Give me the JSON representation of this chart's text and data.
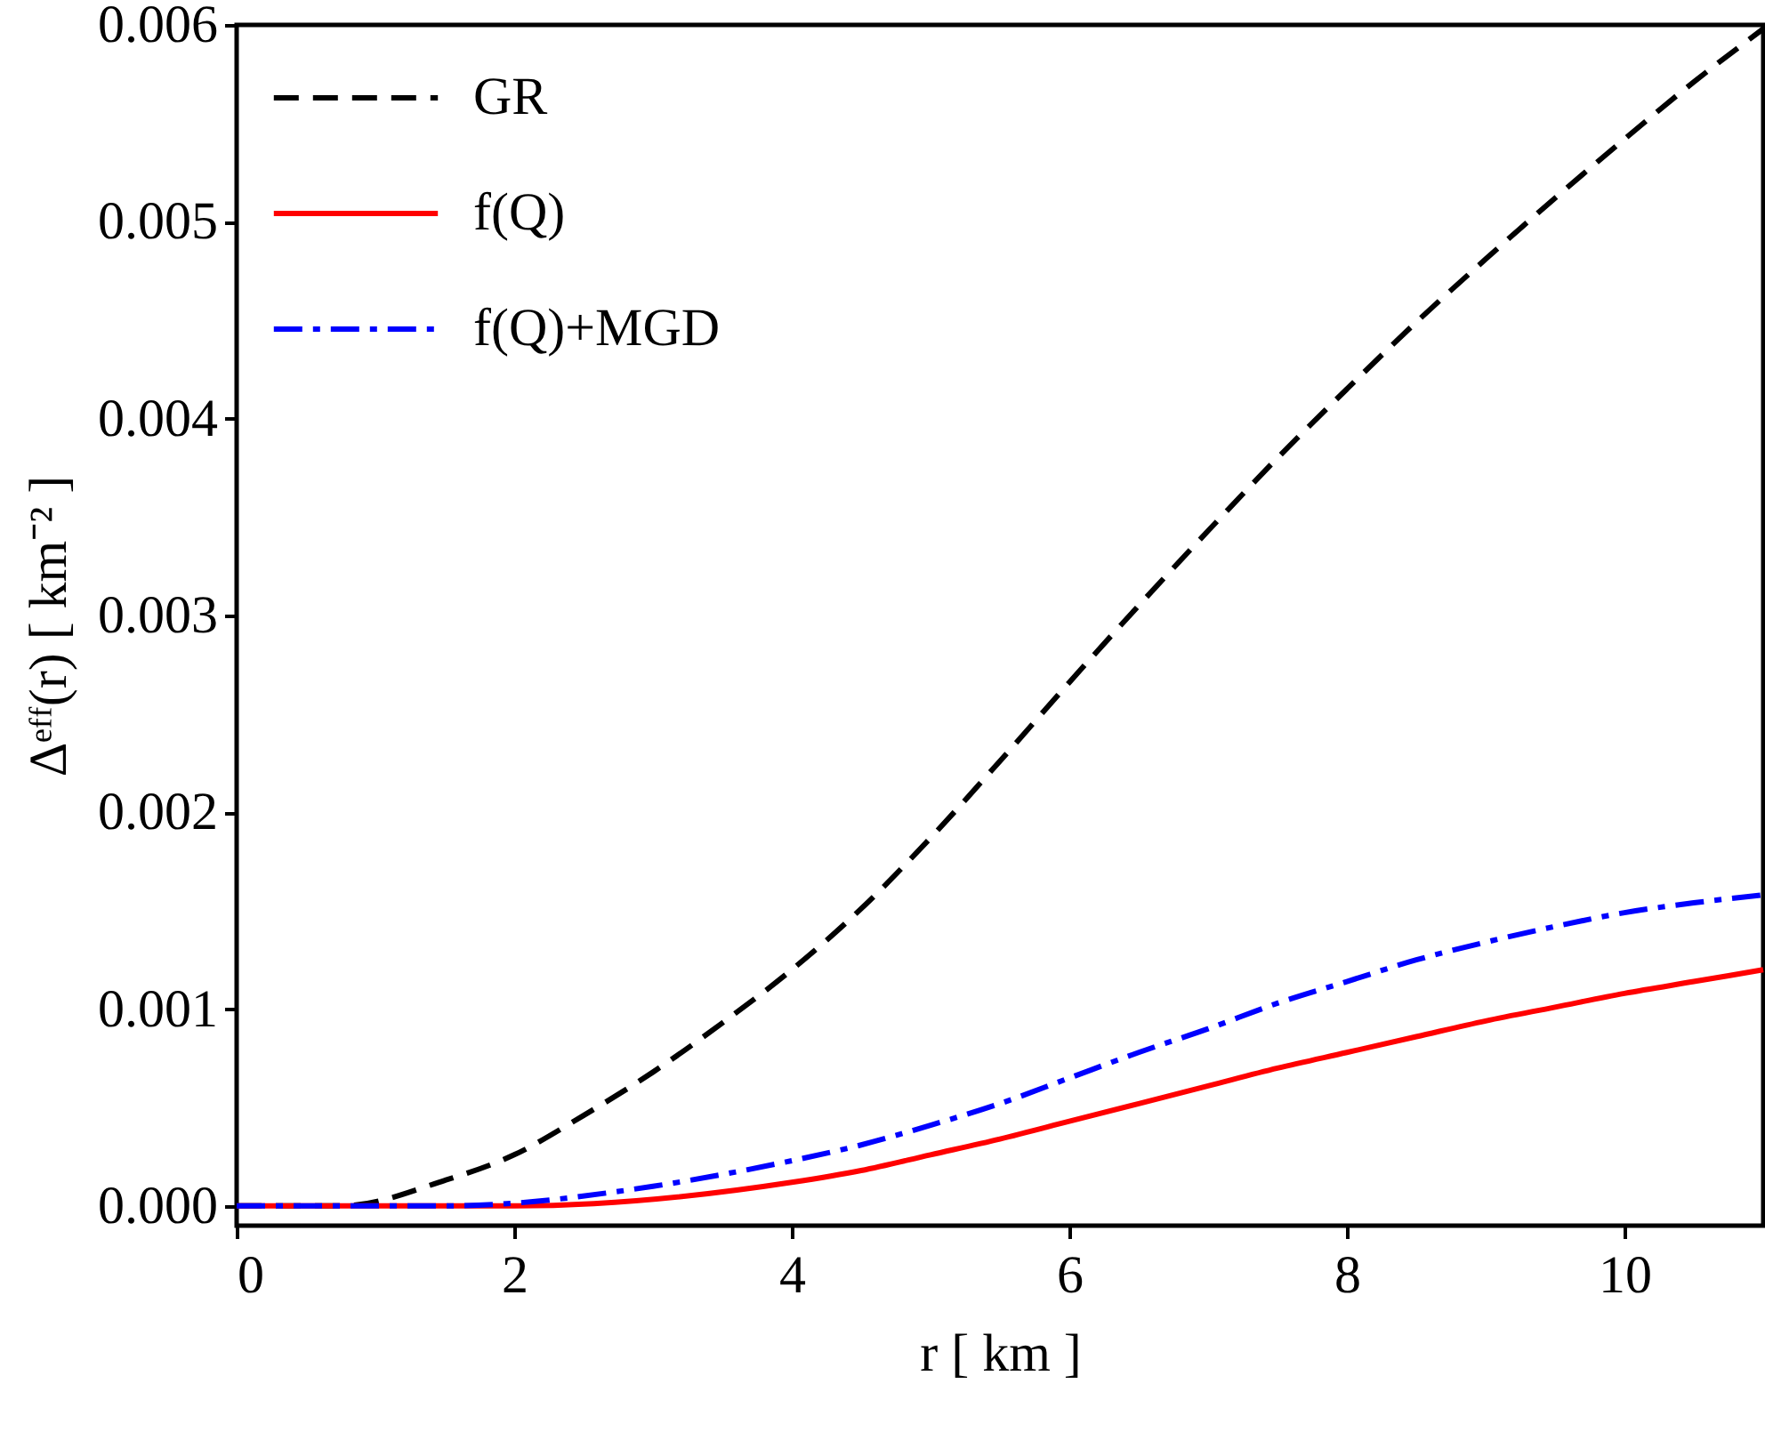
{
  "chart_data": {
    "type": "line",
    "xlabel": "r [ km ]",
    "ylabel": "Δᵉᶠᶠ(r) [ km⁻² ]",
    "xlim": [
      0,
      11
    ],
    "ylim": [
      -0.0001,
      0.006
    ],
    "xticks": [
      0,
      2,
      4,
      6,
      8,
      10
    ],
    "yticks": [
      {
        "value": 0,
        "label": "0.000"
      },
      0.001,
      0.002,
      0.003,
      0.004,
      0.005,
      0.006
    ],
    "grid": false,
    "legend": "top left",
    "marker": "none",
    "series": [
      {
        "name": "GR",
        "color": "#000000",
        "line_style": "dashed",
        "x": [
          0,
          0.75,
          1.5,
          2,
          2.5,
          3,
          3.5,
          4,
          4.5,
          5,
          5.5,
          6,
          6.5,
          7,
          7.5,
          8,
          8.5,
          9,
          9.5,
          10,
          10.5,
          11
        ],
        "values": [
          0,
          0,
          0.00013,
          0.00026,
          0.00046,
          0.00068,
          0.00093,
          0.0012,
          0.00151,
          0.00187,
          0.00226,
          0.00266,
          0.00305,
          0.00343,
          0.0038,
          0.00415,
          0.00449,
          0.00481,
          0.00512,
          0.00542,
          0.00571,
          0.00598
        ]
      },
      {
        "name": "f(Q)",
        "color": "#ff0000",
        "line_style": "solid",
        "x": [
          0,
          2,
          4,
          4.5,
          5,
          5.5,
          6,
          6.5,
          7,
          7.5,
          8,
          8.5,
          9,
          9.5,
          10,
          10.5,
          11
        ],
        "values": [
          0,
          0,
          0.00012,
          0.00018,
          0.00026,
          0.00034,
          0.00043,
          0.00052,
          0.00061,
          0.0007,
          0.00078,
          0.00086,
          0.00094,
          0.00101,
          0.00108,
          0.00114,
          0.0012
        ]
      },
      {
        "name": "f(Q)+MGD",
        "color": "#0000ff",
        "line_style": "dashdot",
        "x": [
          0,
          1.5,
          3,
          3.5,
          4,
          4.5,
          5,
          5.5,
          6,
          6.5,
          7,
          7.5,
          8,
          8.5,
          9,
          9.5,
          10,
          10.5,
          11
        ],
        "values": [
          0,
          0,
          0.0001,
          0.00016,
          0.00023,
          0.00031,
          0.00041,
          0.00052,
          0.00065,
          0.00078,
          0.0009,
          0.00103,
          0.00114,
          0.00125,
          0.00134,
          0.00142,
          0.00149,
          0.00154,
          0.00158
        ]
      }
    ]
  }
}
